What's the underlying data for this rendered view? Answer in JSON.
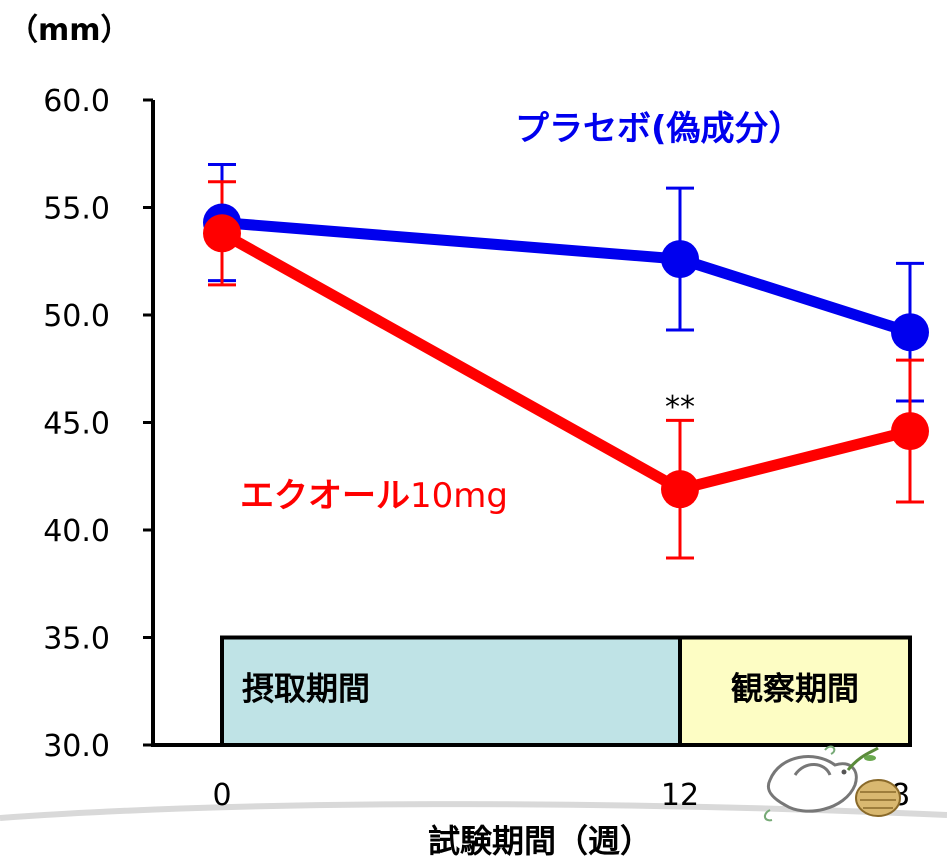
{
  "chart_data": {
    "type": "line",
    "unit_label": "（mm）",
    "xlabel": "試験期間（週）",
    "ylim": [
      30,
      60
    ],
    "yticks": [
      "60.0",
      "55.0",
      "50.0",
      "45.0",
      "40.0",
      "35.0",
      "30.0"
    ],
    "x": [
      0,
      12,
      18
    ],
    "x_tick_labels": [
      "0",
      "12",
      "18"
    ],
    "series": [
      {
        "name": "プラセボ(偽成分）",
        "color": "#0000ee",
        "values": [
          54.3,
          52.6,
          49.2
        ],
        "error": [
          2.7,
          3.3,
          3.2
        ]
      },
      {
        "name_main": "エクオール",
        "name_suffix": "10mg",
        "color": "#ff0000",
        "values": [
          53.8,
          41.9,
          44.6
        ],
        "error": [
          2.4,
          3.2,
          3.3
        ]
      }
    ],
    "annotations": [
      {
        "text": "**",
        "x": 12,
        "y": 45.5
      }
    ],
    "phases": [
      {
        "label": "摂取期間",
        "x_start": 0,
        "x_end": 12,
        "color": "#bfe3e6"
      },
      {
        "label": "観察期間",
        "x_start": 12,
        "x_end": 18,
        "color": "#fdfdc4"
      }
    ]
  }
}
